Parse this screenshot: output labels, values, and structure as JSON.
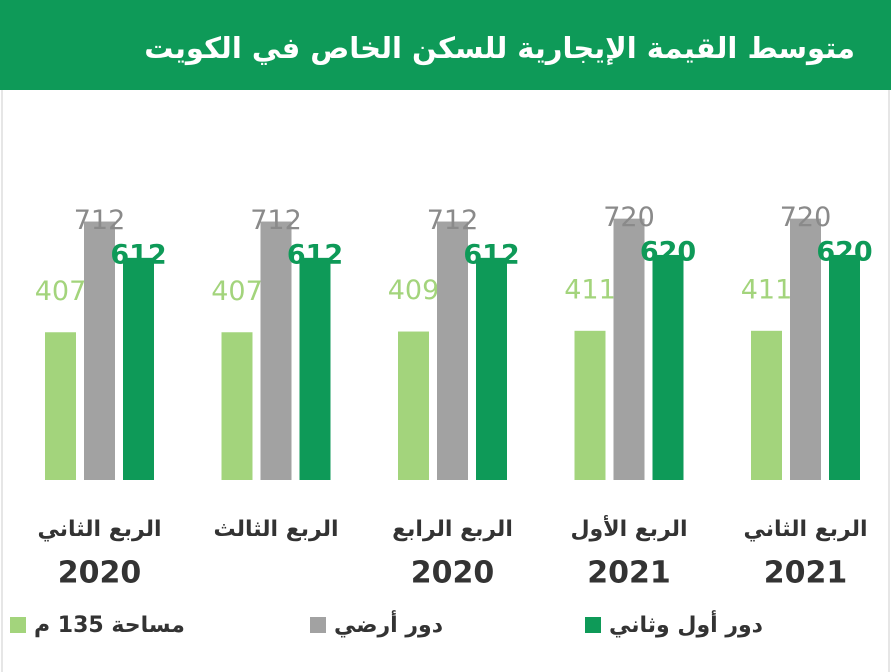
{
  "chart_data": {
    "type": "bar",
    "title": "متوسط القيمة الإيجارية للسكن الخاص في الكويت",
    "categories": [
      [
        "الربع الثاني",
        "2020"
      ],
      [
        "الربع الثالث"
      ],
      [
        "الربع الرابع",
        "2020"
      ],
      [
        "الربع الأول",
        "2021"
      ],
      [
        "الربع الثاني",
        "2021"
      ]
    ],
    "series": [
      {
        "name": "مساحة 135 م",
        "color": "#a3d47c",
        "label_color": "#a3d47c",
        "values": [
          407,
          407,
          409,
          411,
          411
        ]
      },
      {
        "name": "دور أرضي",
        "color": "#a2a2a2",
        "label_color": "#8a8a8a",
        "values": [
          712,
          712,
          712,
          720,
          720
        ]
      },
      {
        "name": "دور أول وثاني",
        "color": "#0e9a58",
        "label_color": "#0e9a58",
        "values": [
          612,
          612,
          612,
          620,
          620
        ]
      }
    ]
  }
}
